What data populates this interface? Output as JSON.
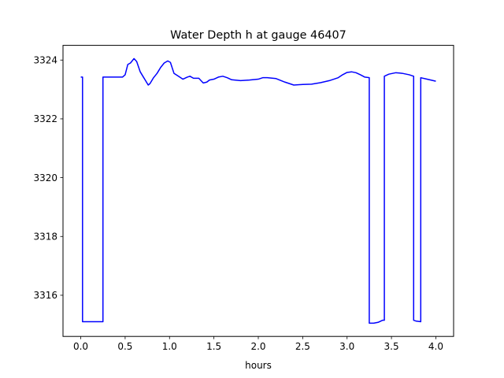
{
  "chart_data": {
    "type": "line",
    "title": "Water Depth h at gauge 46407",
    "xlabel": "hours",
    "ylabel": "",
    "xlim": [
      -0.2,
      4.2
    ],
    "ylim": [
      3314.6,
      3324.5
    ],
    "xticks": [
      0.0,
      0.5,
      1.0,
      1.5,
      2.0,
      2.5,
      3.0,
      3.5,
      4.0
    ],
    "xtick_labels": [
      "0.0",
      "0.5",
      "1.0",
      "1.5",
      "2.0",
      "2.5",
      "3.0",
      "3.5",
      "4.0"
    ],
    "yticks": [
      3316,
      3318,
      3320,
      3322,
      3324
    ],
    "ytick_labels": [
      "3316",
      "3318",
      "3320",
      "3322",
      "3324"
    ],
    "grid": false,
    "series": [
      {
        "color": "#0000ff",
        "points": [
          [
            0.0,
            3323.42
          ],
          [
            0.02,
            3323.42
          ],
          [
            0.02,
            3315.1
          ],
          [
            0.25,
            3315.1
          ],
          [
            0.25,
            3323.42
          ],
          [
            0.3,
            3323.42
          ],
          [
            0.4,
            3323.42
          ],
          [
            0.47,
            3323.42
          ],
          [
            0.5,
            3323.5
          ],
          [
            0.53,
            3323.85
          ],
          [
            0.56,
            3323.9
          ],
          [
            0.6,
            3324.05
          ],
          [
            0.63,
            3323.95
          ],
          [
            0.67,
            3323.6
          ],
          [
            0.7,
            3323.45
          ],
          [
            0.73,
            3323.3
          ],
          [
            0.76,
            3323.15
          ],
          [
            0.78,
            3323.2
          ],
          [
            0.82,
            3323.4
          ],
          [
            0.86,
            3323.55
          ],
          [
            0.9,
            3323.75
          ],
          [
            0.94,
            3323.9
          ],
          [
            0.98,
            3323.97
          ],
          [
            1.01,
            3323.92
          ],
          [
            1.05,
            3323.55
          ],
          [
            1.1,
            3323.45
          ],
          [
            1.15,
            3323.35
          ],
          [
            1.2,
            3323.42
          ],
          [
            1.23,
            3323.45
          ],
          [
            1.27,
            3323.38
          ],
          [
            1.33,
            3323.38
          ],
          [
            1.38,
            3323.22
          ],
          [
            1.42,
            3323.25
          ],
          [
            1.45,
            3323.32
          ],
          [
            1.5,
            3323.35
          ],
          [
            1.55,
            3323.42
          ],
          [
            1.6,
            3323.45
          ],
          [
            1.65,
            3323.4
          ],
          [
            1.7,
            3323.33
          ],
          [
            1.8,
            3323.3
          ],
          [
            1.9,
            3323.32
          ],
          [
            2.0,
            3323.35
          ],
          [
            2.05,
            3323.4
          ],
          [
            2.1,
            3323.4
          ],
          [
            2.2,
            3323.37
          ],
          [
            2.3,
            3323.25
          ],
          [
            2.4,
            3323.15
          ],
          [
            2.5,
            3323.17
          ],
          [
            2.6,
            3323.18
          ],
          [
            2.7,
            3323.23
          ],
          [
            2.8,
            3323.3
          ],
          [
            2.9,
            3323.4
          ],
          [
            2.95,
            3323.5
          ],
          [
            3.0,
            3323.58
          ],
          [
            3.05,
            3323.6
          ],
          [
            3.1,
            3323.57
          ],
          [
            3.15,
            3323.5
          ],
          [
            3.2,
            3323.42
          ],
          [
            3.25,
            3323.4
          ],
          [
            3.25,
            3315.05
          ],
          [
            3.3,
            3315.05
          ],
          [
            3.35,
            3315.08
          ],
          [
            3.4,
            3315.15
          ],
          [
            3.42,
            3315.15
          ],
          [
            3.42,
            3323.45
          ],
          [
            3.47,
            3323.52
          ],
          [
            3.55,
            3323.57
          ],
          [
            3.62,
            3323.55
          ],
          [
            3.7,
            3323.5
          ],
          [
            3.75,
            3323.45
          ],
          [
            3.75,
            3315.15
          ],
          [
            3.78,
            3315.12
          ],
          [
            3.83,
            3315.1
          ],
          [
            3.83,
            3323.4
          ],
          [
            3.9,
            3323.35
          ],
          [
            4.0,
            3323.28
          ]
        ]
      }
    ]
  }
}
